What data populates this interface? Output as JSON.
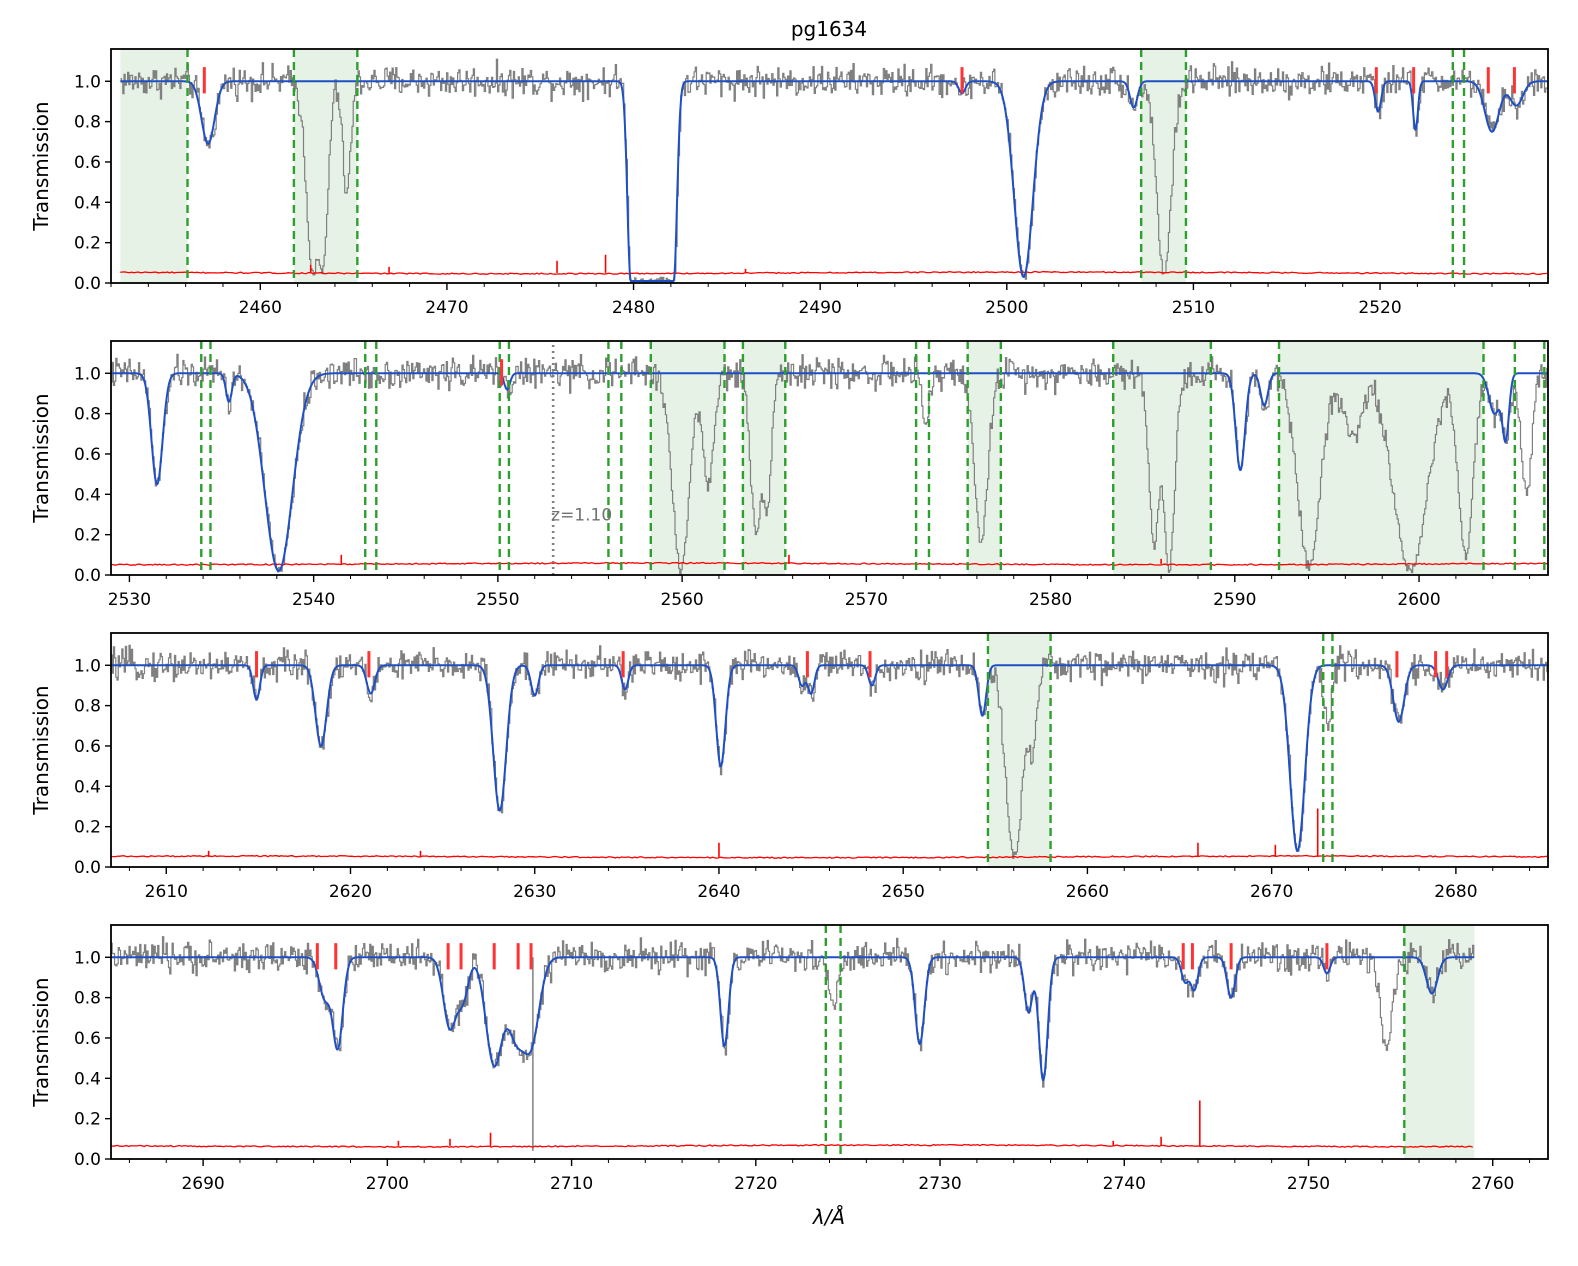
{
  "chart_data": {
    "type": "line",
    "title": "pg1634",
    "xlabel": "λ/Å",
    "ylabel": "Transmission",
    "legend": "none",
    "grid": false,
    "colors": {
      "data": "#808080",
      "model": "#1f4fc4",
      "error": "#ff0000",
      "tick": "#ff3333",
      "region_fill": "#e6f2e6",
      "region_edge": "#2ca02c",
      "redshift_marker": "#808080",
      "redshift_text": "#707070"
    },
    "panels": [
      {
        "xlim": [
          2452.0,
          2529.0
        ],
        "ylim": [
          0.0,
          1.16
        ],
        "xticks": [
          2460,
          2470,
          2480,
          2490,
          2500,
          2510,
          2520
        ],
        "yticks": [
          0.0,
          0.2,
          0.4,
          0.6,
          0.8,
          1.0
        ],
        "data_range": [
          2452.5,
          2529.0
        ],
        "error_base": 0.05,
        "shaded_regions": [
          [
            2452.5,
            2456.1
          ],
          [
            2461.8,
            2465.2
          ],
          [
            2507.2,
            2509.6
          ]
        ],
        "dashed_lines": [
          2456.1,
          2461.8,
          2465.2,
          2507.2,
          2509.6,
          2523.9,
          2524.5
        ],
        "model_absorptions": [
          {
            "center": 2457.2,
            "depth": 0.31,
            "width": 0.35
          },
          {
            "center": 2481.0,
            "depth": 0.99,
            "width": 1.2,
            "flat": true
          },
          {
            "center": 2497.6,
            "depth": 0.06,
            "width": 0.18
          },
          {
            "center": 2500.9,
            "depth": 0.97,
            "width": 0.5
          },
          {
            "center": 2506.8,
            "depth": 0.13,
            "width": 0.2
          },
          {
            "center": 2519.9,
            "depth": 0.15,
            "width": 0.16
          },
          {
            "center": 2521.9,
            "depth": 0.24,
            "width": 0.13
          },
          {
            "center": 2526.0,
            "depth": 0.25,
            "width": 0.38
          },
          {
            "center": 2527.3,
            "depth": 0.12,
            "width": 0.35
          }
        ],
        "data_absorptions": [
          {
            "center": 2462.8,
            "depth": 0.94,
            "width": 0.35
          },
          {
            "center": 2463.3,
            "depth": 0.92,
            "width": 0.28
          },
          {
            "center": 2464.6,
            "depth": 0.55,
            "width": 0.22
          },
          {
            "center": 2508.4,
            "depth": 0.96,
            "width": 0.38
          }
        ],
        "tick_marks": [
          2457.0,
          2497.6,
          2519.8,
          2521.8,
          2525.8,
          2527.2
        ],
        "error_spikes": [
          {
            "x": 2462.7,
            "y": 0.09
          },
          {
            "x": 2466.9,
            "y": 0.08
          },
          {
            "x": 2475.9,
            "y": 0.11
          },
          {
            "x": 2478.5,
            "y": 0.14
          },
          {
            "x": 2486.0,
            "y": 0.07
          }
        ]
      },
      {
        "xlim": [
          2529.0,
          2607.0
        ],
        "ylim": [
          0.0,
          1.16
        ],
        "xticks": [
          2530,
          2540,
          2550,
          2560,
          2570,
          2580,
          2590,
          2600
        ],
        "yticks": [
          0.0,
          0.2,
          0.4,
          0.6,
          0.8,
          1.0
        ],
        "data_range": [
          2529.0,
          2607.0
        ],
        "error_base": 0.055,
        "shaded_regions": [
          [
            2558.3,
            2562.3
          ],
          [
            2563.3,
            2565.6
          ],
          [
            2575.5,
            2577.3
          ],
          [
            2583.4,
            2588.7
          ],
          [
            2592.4,
            2603.5
          ]
        ],
        "dashed_lines": [
          2533.9,
          2534.4,
          2542.8,
          2543.4,
          2550.1,
          2550.6,
          2556.0,
          2556.7,
          2558.3,
          2562.3,
          2563.3,
          2565.6,
          2572.7,
          2573.4,
          2575.5,
          2577.3,
          2583.4,
          2588.7,
          2592.4,
          2603.5,
          2605.2,
          2606.8
        ],
        "model_absorptions": [
          {
            "center": 2531.5,
            "depth": 0.55,
            "width": 0.3
          },
          {
            "center": 2535.4,
            "depth": 0.14,
            "width": 0.16
          },
          {
            "center": 2538.1,
            "depth": 0.98,
            "width": 0.75
          },
          {
            "center": 2550.5,
            "depth": 0.08,
            "width": 0.16
          },
          {
            "center": 2590.3,
            "depth": 0.48,
            "width": 0.25
          },
          {
            "center": 2591.6,
            "depth": 0.16,
            "width": 0.2
          },
          {
            "center": 2604.1,
            "depth": 0.2,
            "width": 0.3
          },
          {
            "center": 2604.7,
            "depth": 0.32,
            "width": 0.18
          }
        ],
        "data_absorptions": [
          {
            "center": 2559.9,
            "depth": 0.98,
            "width": 0.45
          },
          {
            "center": 2561.4,
            "depth": 0.55,
            "width": 0.3
          },
          {
            "center": 2564.0,
            "depth": 0.8,
            "width": 0.3
          },
          {
            "center": 2564.6,
            "depth": 0.62,
            "width": 0.22
          },
          {
            "center": 2573.2,
            "depth": 0.25,
            "width": 0.2
          },
          {
            "center": 2576.2,
            "depth": 0.85,
            "width": 0.35
          },
          {
            "center": 2585.6,
            "depth": 0.85,
            "width": 0.28
          },
          {
            "center": 2586.4,
            "depth": 0.97,
            "width": 0.3
          },
          {
            "center": 2594.0,
            "depth": 0.96,
            "width": 0.6
          },
          {
            "center": 2596.4,
            "depth": 0.3,
            "width": 0.5
          },
          {
            "center": 2599.5,
            "depth": 0.99,
            "width": 0.9
          },
          {
            "center": 2602.5,
            "depth": 0.9,
            "width": 0.4
          },
          {
            "center": 2605.8,
            "depth": 0.6,
            "width": 0.28
          }
        ],
        "tick_marks": [
          2550.2
        ],
        "redshift_marker": {
          "x": 2553.0,
          "label": "z=1.10"
        },
        "error_spikes": [
          {
            "x": 2541.5,
            "y": 0.1
          },
          {
            "x": 2565.8,
            "y": 0.1
          },
          {
            "x": 2586.0,
            "y": 0.08
          }
        ]
      },
      {
        "xlim": [
          2607.0,
          2685.0
        ],
        "ylim": [
          0.0,
          1.16
        ],
        "xticks": [
          2610,
          2620,
          2630,
          2640,
          2650,
          2660,
          2670,
          2680
        ],
        "yticks": [
          0.0,
          0.2,
          0.4,
          0.6,
          0.8,
          1.0
        ],
        "data_range": [
          2607.0,
          2685.0
        ],
        "error_base": 0.05,
        "shaded_regions": [
          [
            2654.6,
            2658.0
          ]
        ],
        "dashed_lines": [
          2654.6,
          2658.0,
          2672.8,
          2673.3
        ],
        "model_absorptions": [
          {
            "center": 2614.9,
            "depth": 0.17,
            "width": 0.18
          },
          {
            "center": 2618.4,
            "depth": 0.4,
            "width": 0.3
          },
          {
            "center": 2621.1,
            "depth": 0.14,
            "width": 0.22
          },
          {
            "center": 2628.1,
            "depth": 0.72,
            "width": 0.35
          },
          {
            "center": 2630.0,
            "depth": 0.15,
            "width": 0.2
          },
          {
            "center": 2634.9,
            "depth": 0.12,
            "width": 0.18
          },
          {
            "center": 2640.1,
            "depth": 0.5,
            "width": 0.25
          },
          {
            "center": 2644.5,
            "depth": 0.1,
            "width": 0.18
          },
          {
            "center": 2645.0,
            "depth": 0.14,
            "width": 0.18
          },
          {
            "center": 2648.3,
            "depth": 0.1,
            "width": 0.18
          },
          {
            "center": 2654.3,
            "depth": 0.25,
            "width": 0.2
          },
          {
            "center": 2671.4,
            "depth": 0.92,
            "width": 0.4
          },
          {
            "center": 2676.9,
            "depth": 0.28,
            "width": 0.3
          },
          {
            "center": 2679.3,
            "depth": 0.12,
            "width": 0.25
          }
        ],
        "data_absorptions": [
          {
            "center": 2656.0,
            "depth": 0.95,
            "width": 0.45
          },
          {
            "center": 2657.0,
            "depth": 0.4,
            "width": 0.25
          },
          {
            "center": 2673.0,
            "depth": 0.3,
            "width": 0.2
          }
        ],
        "tick_marks": [
          2614.9,
          2621.0,
          2634.8,
          2644.8,
          2648.2,
          2676.8,
          2678.9,
          2679.5
        ],
        "error_spikes": [
          {
            "x": 2612.3,
            "y": 0.08
          },
          {
            "x": 2623.8,
            "y": 0.08
          },
          {
            "x": 2640.0,
            "y": 0.12
          },
          {
            "x": 2666.0,
            "y": 0.12
          },
          {
            "x": 2670.2,
            "y": 0.11
          },
          {
            "x": 2672.5,
            "y": 0.29
          }
        ]
      },
      {
        "xlim": [
          2685.0,
          2763.0
        ],
        "ylim": [
          0.0,
          1.16
        ],
        "xticks": [
          2690,
          2700,
          2710,
          2720,
          2730,
          2740,
          2750,
          2760
        ],
        "yticks": [
          0.0,
          0.2,
          0.4,
          0.6,
          0.8,
          1.0
        ],
        "data_range": [
          2685.0,
          2759.0
        ],
        "error_base": 0.065,
        "shaded_regions": [
          [
            2755.2,
            2759.0
          ]
        ],
        "dashed_lines": [
          2723.8,
          2724.6,
          2755.2
        ],
        "model_absorptions": [
          {
            "center": 2696.6,
            "depth": 0.2,
            "width": 0.3
          },
          {
            "center": 2697.3,
            "depth": 0.45,
            "width": 0.28
          },
          {
            "center": 2703.4,
            "depth": 0.35,
            "width": 0.35
          },
          {
            "center": 2704.1,
            "depth": 0.2,
            "width": 0.3
          },
          {
            "center": 2705.8,
            "depth": 0.53,
            "width": 0.45
          },
          {
            "center": 2707.0,
            "depth": 0.38,
            "width": 0.5
          },
          {
            "center": 2707.8,
            "depth": 0.4,
            "width": 0.45
          },
          {
            "center": 2718.3,
            "depth": 0.44,
            "width": 0.22
          },
          {
            "center": 2728.9,
            "depth": 0.43,
            "width": 0.25
          },
          {
            "center": 2734.8,
            "depth": 0.27,
            "width": 0.22
          },
          {
            "center": 2735.6,
            "depth": 0.61,
            "width": 0.24
          },
          {
            "center": 2743.3,
            "depth": 0.12,
            "width": 0.2
          },
          {
            "center": 2743.8,
            "depth": 0.16,
            "width": 0.2
          },
          {
            "center": 2745.8,
            "depth": 0.2,
            "width": 0.22
          },
          {
            "center": 2751.0,
            "depth": 0.08,
            "width": 0.18
          },
          {
            "center": 2756.7,
            "depth": 0.18,
            "width": 0.3
          }
        ],
        "data_absorptions": [
          {
            "center": 2724.2,
            "depth": 0.25,
            "width": 0.25
          },
          {
            "center": 2754.2,
            "depth": 0.45,
            "width": 0.3
          }
        ],
        "data_spikes": [
          {
            "x": 2707.9,
            "y": 0.04
          }
        ],
        "tick_marks": [
          2696.2,
          2697.2,
          2703.3,
          2704.0,
          2705.8,
          2707.1,
          2707.8,
          2743.2,
          2743.7,
          2745.8,
          2751.0
        ],
        "error_spikes": [
          {
            "x": 2700.6,
            "y": 0.09
          },
          {
            "x": 2703.4,
            "y": 0.1
          },
          {
            "x": 2705.6,
            "y": 0.13
          },
          {
            "x": 2739.4,
            "y": 0.09
          },
          {
            "x": 2742.0,
            "y": 0.11
          },
          {
            "x": 2744.1,
            "y": 0.29
          }
        ]
      }
    ]
  }
}
